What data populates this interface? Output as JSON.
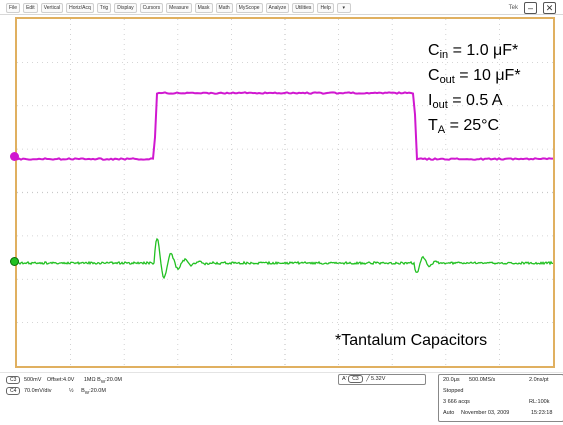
{
  "menubar": {
    "items": [
      "File",
      "Edit",
      "Vertical",
      "Horiz/Acq",
      "Trig",
      "Display",
      "Cursors",
      "Measure",
      "Mask",
      "Math",
      "MyScope",
      "Analyze",
      "Utilities",
      "Help"
    ],
    "dropdown_glyph": "▾",
    "tek_label": "Tek",
    "minimize_glyph": "–",
    "close_glyph": "✕"
  },
  "annotations": {
    "cin_label": "C",
    "cin_sub": "in",
    "cin_value": " = 1.0 μF*",
    "cout_label": "C",
    "cout_sub": "out",
    "cout_value": " = 10 μF*",
    "iout_label": "I",
    "iout_sub": "out",
    "iout_value": " = 0.5 A",
    "ta_label": "T",
    "ta_sub": "A",
    "ta_value": " = 25°C",
    "footnote": "*Tantalum Capacitors"
  },
  "waveforms": {
    "ch1_color": "#d018d0",
    "ch2_color": "#22c022",
    "grid_color": "#c8c8c8"
  },
  "status": {
    "ch1_tag": "C3",
    "ch1_scale": "500mV",
    "ch1_offset": "Offset:4.0V",
    "ch1_imp": "1MΩ",
    "ch1_bw": "B",
    "ch1_bw_sub": "W",
    "ch1_bw_val": ":20.0M",
    "ch2_tag": "C4",
    "ch2_scale": "70.0mV/div",
    "ch2_imp": "½",
    "ch2_bw": "B",
    "ch2_bw_sub": "W",
    "ch2_bw_val": ":20.0M",
    "trig_glyph": "A'",
    "trig_tag": "C3",
    "trig_edge": "╱",
    "trig_level": "5.32V",
    "timebase": "20.0μs",
    "sample_rate": "500.0MS/s",
    "per_pt": "2.0ns/pt",
    "run_state": "Stopped",
    "acqs": "3 666 acqs",
    "record_length": "RL:100k",
    "mode": "Auto",
    "date": "November 03, 2009",
    "time": "15:23:18"
  }
}
